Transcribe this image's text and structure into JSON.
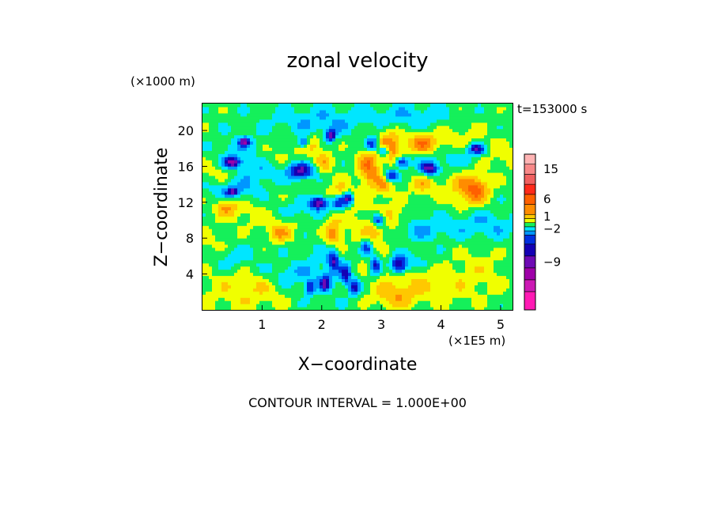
{
  "chart_data": {
    "type": "heatmap",
    "title": "zonal velocity",
    "time_label": "t=153000 s",
    "xlabel": "X−coordinate",
    "ylabel": "Z−coordinate",
    "x_units": "(×1E5 m)",
    "y_units": "(×1000 m)",
    "xlim": [
      0,
      5.2
    ],
    "ylim": [
      0,
      23
    ],
    "x_ticks": [
      1,
      2,
      3,
      4,
      5
    ],
    "y_ticks": [
      4,
      8,
      12,
      16,
      20
    ],
    "footer": "CONTOUR INTERVAL = 1.000E+00",
    "contour_interval": 1.0,
    "colorbar": {
      "levels_bottom_to_top": [
        {
          "color": "#ff1ab4"
        },
        {
          "color": "#cc19b4"
        },
        {
          "color": "#9e00a8"
        },
        {
          "color": "#6e0ab4"
        },
        {
          "color": "#1400b4"
        },
        {
          "color": "#0030e0"
        },
        {
          "color": "#0096ff"
        },
        {
          "color": "#00e6ff"
        },
        {
          "color": "#15f05a"
        },
        {
          "color": "#f0ff00"
        },
        {
          "color": "#ffc800"
        },
        {
          "color": "#ff8c00"
        },
        {
          "color": "#ff6000"
        },
        {
          "color": "#ff2a1a"
        },
        {
          "color": "#f06060"
        },
        {
          "color": "#f88888"
        },
        {
          "color": "#ffb4b4"
        }
      ],
      "labels": [
        {
          "text": "15",
          "level": 15
        },
        {
          "text": "6",
          "level": 12
        },
        {
          "text": "1",
          "level": 10
        },
        {
          "text": "−2",
          "level": 7
        },
        {
          "text": "−9",
          "level": 3
        }
      ]
    },
    "field": {
      "background_level": 8,
      "features": [
        {
          "x": 0.5,
          "z": 2.0,
          "sx": 0.5,
          "sz": 2.0,
          "a": 1.0
        },
        {
          "x": 1.0,
          "z": 3.0,
          "sx": 0.3,
          "sz": 1.5,
          "a": 1.0
        },
        {
          "x": 0.2,
          "z": 7.0,
          "sx": 0.3,
          "sz": 1.2,
          "a": 1.0
        },
        {
          "x": 0.6,
          "z": 11.0,
          "sx": 0.3,
          "sz": 1.0,
          "a": 1.0
        },
        {
          "x": 0.3,
          "z": 15.0,
          "sx": 0.3,
          "sz": 1.0,
          "a": 1.0
        },
        {
          "x": 1.1,
          "z": 17.5,
          "sx": 0.3,
          "sz": 1.0,
          "a": 1.0
        },
        {
          "x": 1.3,
          "z": 10.0,
          "sx": 0.3,
          "sz": 1.0,
          "a": 1.0
        },
        {
          "x": 2.5,
          "z": 10.0,
          "sx": 0.5,
          "sz": 3.0,
          "a": 1.0
        },
        {
          "x": 3.3,
          "z": 4.5,
          "sx": 0.4,
          "sz": 1.5,
          "a": 1.0
        },
        {
          "x": 3.8,
          "z": 2.5,
          "sx": 0.4,
          "sz": 1.5,
          "a": 1.0
        },
        {
          "x": 4.6,
          "z": 4.0,
          "sx": 0.4,
          "sz": 2.0,
          "a": 1.0
        },
        {
          "x": 4.3,
          "z": 19.0,
          "sx": 0.4,
          "sz": 1.5,
          "a": 1.0
        },
        {
          "x": 3.0,
          "z": 19.5,
          "sx": 0.3,
          "sz": 1.2,
          "a": 1.0
        },
        {
          "x": 4.4,
          "z": 13.5,
          "sx": 0.25,
          "sz": 1.5,
          "a": 2.0
        },
        {
          "x": 4.6,
          "z": 13.5,
          "sx": 0.15,
          "sz": 1.0,
          "a": 2.5
        },
        {
          "x": 0.4,
          "z": 11.5,
          "sx": 0.12,
          "sz": 0.6,
          "a": 2.0
        },
        {
          "x": 1.3,
          "z": 8.5,
          "sx": 0.15,
          "sz": 0.7,
          "a": 2.0
        },
        {
          "x": 1.8,
          "z": 18.5,
          "sx": 0.15,
          "sz": 0.8,
          "a": 2.5
        },
        {
          "x": 3.7,
          "z": 18.5,
          "sx": 0.2,
          "sz": 0.8,
          "a": 3.0
        },
        {
          "x": 2.8,
          "z": 16.0,
          "sx": 0.12,
          "sz": 1.5,
          "a": 3.5
        },
        {
          "x": 3.15,
          "z": 18.0,
          "sx": 0.12,
          "sz": 1.2,
          "a": 3.0
        },
        {
          "x": 2.3,
          "z": 12.5,
          "sx": 0.1,
          "sz": 1.0,
          "a": 3.0
        },
        {
          "x": 2.2,
          "z": 8.5,
          "sx": 0.1,
          "sz": 1.0,
          "a": 3.0
        },
        {
          "x": 2.9,
          "z": 9.0,
          "sx": 0.1,
          "sz": 0.8,
          "a": 2.5
        },
        {
          "x": 3.05,
          "z": 14.0,
          "sx": 0.1,
          "sz": 0.8,
          "a": 2.5
        },
        {
          "x": 2.05,
          "z": 16.5,
          "sx": 0.1,
          "sz": 0.8,
          "a": 2.0
        },
        {
          "x": 3.2,
          "z": 1.5,
          "sx": 0.25,
          "sz": 1.0,
          "a": 2.0
        },
        {
          "x": 5.0,
          "z": 17.0,
          "sx": 0.3,
          "sz": 1.0,
          "a": 1.5
        },
        {
          "x": 3.7,
          "z": 14.0,
          "sx": 0.15,
          "sz": 0.8,
          "a": 2.0
        },
        {
          "x": 3.2,
          "z": 10.5,
          "sx": 0.15,
          "sz": 0.8,
          "a": 1.5
        },
        {
          "x": 0.7,
          "z": 18.0,
          "sx": 0.3,
          "sz": 1.0,
          "a": -1.5
        },
        {
          "x": 0.9,
          "z": 15.5,
          "sx": 0.3,
          "sz": 1.0,
          "a": -1.5
        },
        {
          "x": 0.5,
          "z": 13.5,
          "sx": 0.3,
          "sz": 0.8,
          "a": -2.0
        },
        {
          "x": 0.5,
          "z": 6.0,
          "sx": 0.3,
          "sz": 1.0,
          "a": -1.5
        },
        {
          "x": 1.4,
          "z": 4.0,
          "sx": 0.4,
          "sz": 1.0,
          "a": -1.5
        },
        {
          "x": 2.0,
          "z": 21.0,
          "sx": 0.6,
          "sz": 1.2,
          "a": -1.5
        },
        {
          "x": 3.5,
          "z": 21.5,
          "sx": 0.5,
          "sz": 1.0,
          "a": -1.5
        },
        {
          "x": 4.3,
          "z": 17.0,
          "sx": 0.5,
          "sz": 1.0,
          "a": -1.5
        },
        {
          "x": 4.7,
          "z": 9.5,
          "sx": 0.4,
          "sz": 1.2,
          "a": -1.5
        },
        {
          "x": 3.7,
          "z": 9.0,
          "sx": 0.3,
          "sz": 1.0,
          "a": -1.5
        },
        {
          "x": 3.5,
          "z": 5.5,
          "sx": 0.3,
          "sz": 0.8,
          "a": -1.5
        },
        {
          "x": 1.6,
          "z": 11.0,
          "sx": 0.3,
          "sz": 0.8,
          "a": -1.5
        },
        {
          "x": 0.5,
          "z": 16.5,
          "sx": 0.1,
          "sz": 0.4,
          "a": -5.5
        },
        {
          "x": 0.7,
          "z": 18.8,
          "sx": 0.06,
          "sz": 0.3,
          "a": -5.0
        },
        {
          "x": 0.5,
          "z": 13.2,
          "sx": 0.06,
          "sz": 0.3,
          "a": -4.0
        },
        {
          "x": 1.7,
          "z": 18.7,
          "sx": 0.08,
          "sz": 0.5,
          "a": -4.5
        },
        {
          "x": 1.65,
          "z": 15.5,
          "sx": 0.15,
          "sz": 0.6,
          "a": -5.0
        },
        {
          "x": 2.15,
          "z": 19.5,
          "sx": 0.06,
          "sz": 0.4,
          "a": -5.0
        },
        {
          "x": 1.95,
          "z": 12.0,
          "sx": 0.1,
          "sz": 0.5,
          "a": -5.5
        },
        {
          "x": 2.3,
          "z": 12.0,
          "sx": 0.1,
          "sz": 0.7,
          "a": -6.0
        },
        {
          "x": 2.45,
          "z": 12.5,
          "sx": 0.06,
          "sz": 0.4,
          "a": -4.5
        },
        {
          "x": 2.85,
          "z": 18.5,
          "sx": 0.08,
          "sz": 0.6,
          "a": -5.0
        },
        {
          "x": 3.05,
          "z": 17.8,
          "sx": 0.06,
          "sz": 0.4,
          "a": -4.5
        },
        {
          "x": 3.15,
          "z": 15.0,
          "sx": 0.08,
          "sz": 0.5,
          "a": -4.5
        },
        {
          "x": 3.35,
          "z": 16.5,
          "sx": 0.08,
          "sz": 0.4,
          "a": -4.0
        },
        {
          "x": 3.8,
          "z": 15.8,
          "sx": 0.1,
          "sz": 0.5,
          "a": -5.0
        },
        {
          "x": 4.6,
          "z": 18.0,
          "sx": 0.1,
          "sz": 0.4,
          "a": -4.5
        },
        {
          "x": 2.95,
          "z": 10.0,
          "sx": 0.08,
          "sz": 0.6,
          "a": -5.0
        },
        {
          "x": 2.9,
          "z": 5.0,
          "sx": 0.06,
          "sz": 0.8,
          "a": -4.0
        },
        {
          "x": 3.3,
          "z": 5.0,
          "sx": 0.1,
          "sz": 0.7,
          "a": -5.0
        },
        {
          "x": 2.4,
          "z": 4.0,
          "sx": 0.06,
          "sz": 0.8,
          "a": -4.0
        },
        {
          "x": 2.2,
          "z": 5.5,
          "sx": 0.06,
          "sz": 0.8,
          "a": -4.0
        },
        {
          "x": 2.05,
          "z": 3.0,
          "sx": 0.06,
          "sz": 0.6,
          "a": -4.0
        },
        {
          "x": 2.55,
          "z": 2.5,
          "sx": 0.06,
          "sz": 0.6,
          "a": -4.0
        },
        {
          "x": 2.75,
          "z": 7.0,
          "sx": 0.06,
          "sz": 0.6,
          "a": -3.5
        },
        {
          "x": 1.8,
          "z": 2.5,
          "sx": 0.06,
          "sz": 0.5,
          "a": -3.5
        },
        {
          "x": 2.1,
          "z": 6.0,
          "sx": 0.3,
          "sz": 3.0,
          "a": -1.0
        }
      ]
    }
  }
}
